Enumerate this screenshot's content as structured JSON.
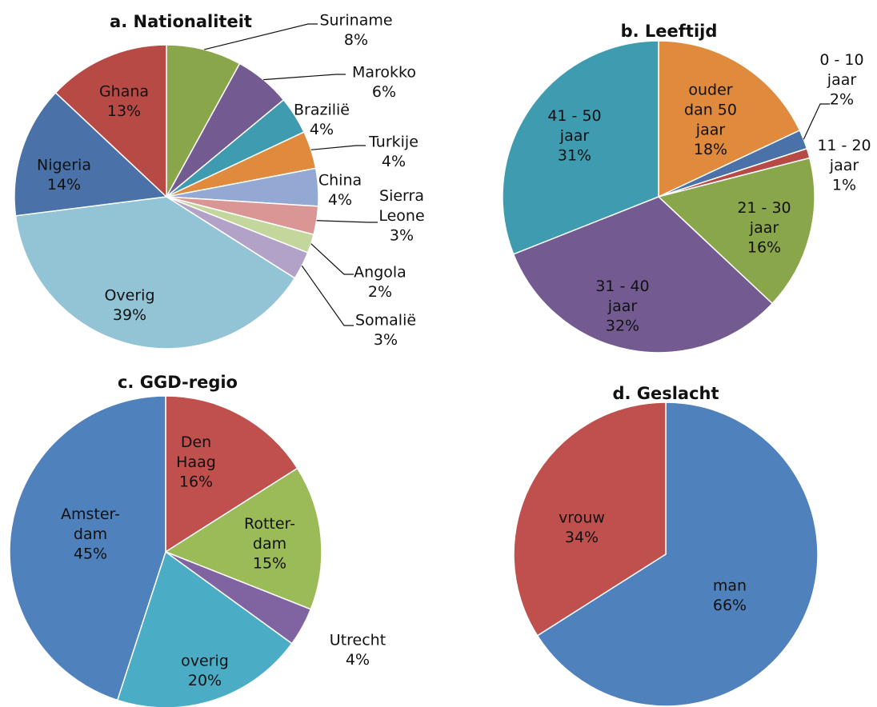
{
  "chart_data": [
    {
      "type": "pie",
      "title": "a. Nationaliteit",
      "categories": [
        "Suriname",
        "Marokko",
        "Brazilië",
        "Turkije",
        "China",
        "Sierra\nLeone",
        "Angola",
        "Somalië",
        "Overig",
        "Nigeria",
        "Ghana"
      ],
      "values": [
        8,
        6,
        4,
        4,
        4,
        3,
        2,
        3,
        39,
        14,
        13
      ],
      "value_labels": [
        "8%",
        "6%",
        "4%",
        "4%",
        "4%",
        "3%",
        "2%",
        "3%",
        "39%",
        "14%",
        "13%"
      ],
      "colors": [
        "#8aa64b",
        "#735a91",
        "#3f9bb0",
        "#df8a3d",
        "#93a9d4",
        "#d99694",
        "#c3d69b",
        "#b3a2c7",
        "#93c4d5",
        "#4a72a8",
        "#b84a46"
      ]
    },
    {
      "type": "pie",
      "title": "b. Leeftijd",
      "categories": [
        "ouder\ndan 50\njaar",
        "0 - 10\njaar",
        "11 - 20\njaar",
        "21 - 30\njaar",
        "31 - 40\njaar",
        "41 - 50\njaar"
      ],
      "values": [
        18,
        2,
        1,
        16,
        32,
        31
      ],
      "value_labels": [
        "18%",
        "2%",
        "1%",
        "16%",
        "32%",
        "31%"
      ],
      "colors": [
        "#df8a3d",
        "#4a72a8",
        "#b84a46",
        "#8aa64b",
        "#735a91",
        "#3f9bb0"
      ]
    },
    {
      "type": "pie",
      "title": "c. GGD-regio",
      "categories": [
        "Den\nHaag",
        "Rotter-\ndam",
        "Utrecht",
        "overig",
        "Amster-\ndam"
      ],
      "values": [
        16,
        15,
        4,
        20,
        45
      ],
      "value_labels": [
        "16%",
        "15%",
        "4%",
        "20%",
        "45%"
      ],
      "colors": [
        "#c0504d",
        "#9bbb59",
        "#8064a2",
        "#4bacc6",
        "#4f81bd"
      ]
    },
    {
      "type": "pie",
      "title": "d. Geslacht",
      "categories": [
        "man",
        "vrouw"
      ],
      "values": [
        66,
        34
      ],
      "value_labels": [
        "66%",
        "34%"
      ],
      "colors": [
        "#4f81bd",
        "#c0504d"
      ]
    }
  ]
}
